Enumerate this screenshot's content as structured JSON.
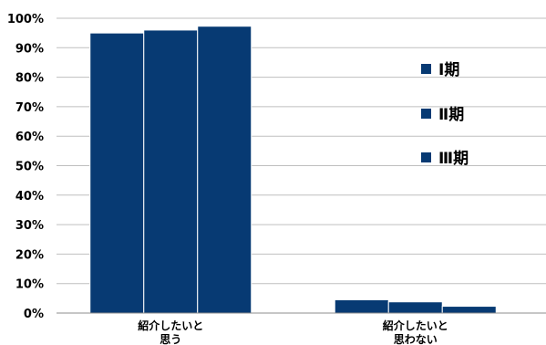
{
  "chart_data": {
    "type": "bar",
    "title": "",
    "xlabel": "",
    "ylabel": "",
    "ylim": [
      0,
      100
    ],
    "yticks": [
      "0%",
      "10%",
      "20%",
      "30%",
      "40%",
      "50%",
      "60%",
      "70%",
      "80%",
      "90%",
      "100%"
    ],
    "categories": [
      "紹介したいと思う",
      "紹介したいと思わない"
    ],
    "series": [
      {
        "name": "Ⅰ期",
        "values": [
          95,
          4.5
        ]
      },
      {
        "name": "Ⅱ期",
        "values": [
          96,
          3.8
        ]
      },
      {
        "name": "Ⅲ期",
        "values": [
          97.3,
          2.3
        ]
      }
    ],
    "grid": true,
    "legend_position": "right",
    "bar_color": "#073a73"
  }
}
